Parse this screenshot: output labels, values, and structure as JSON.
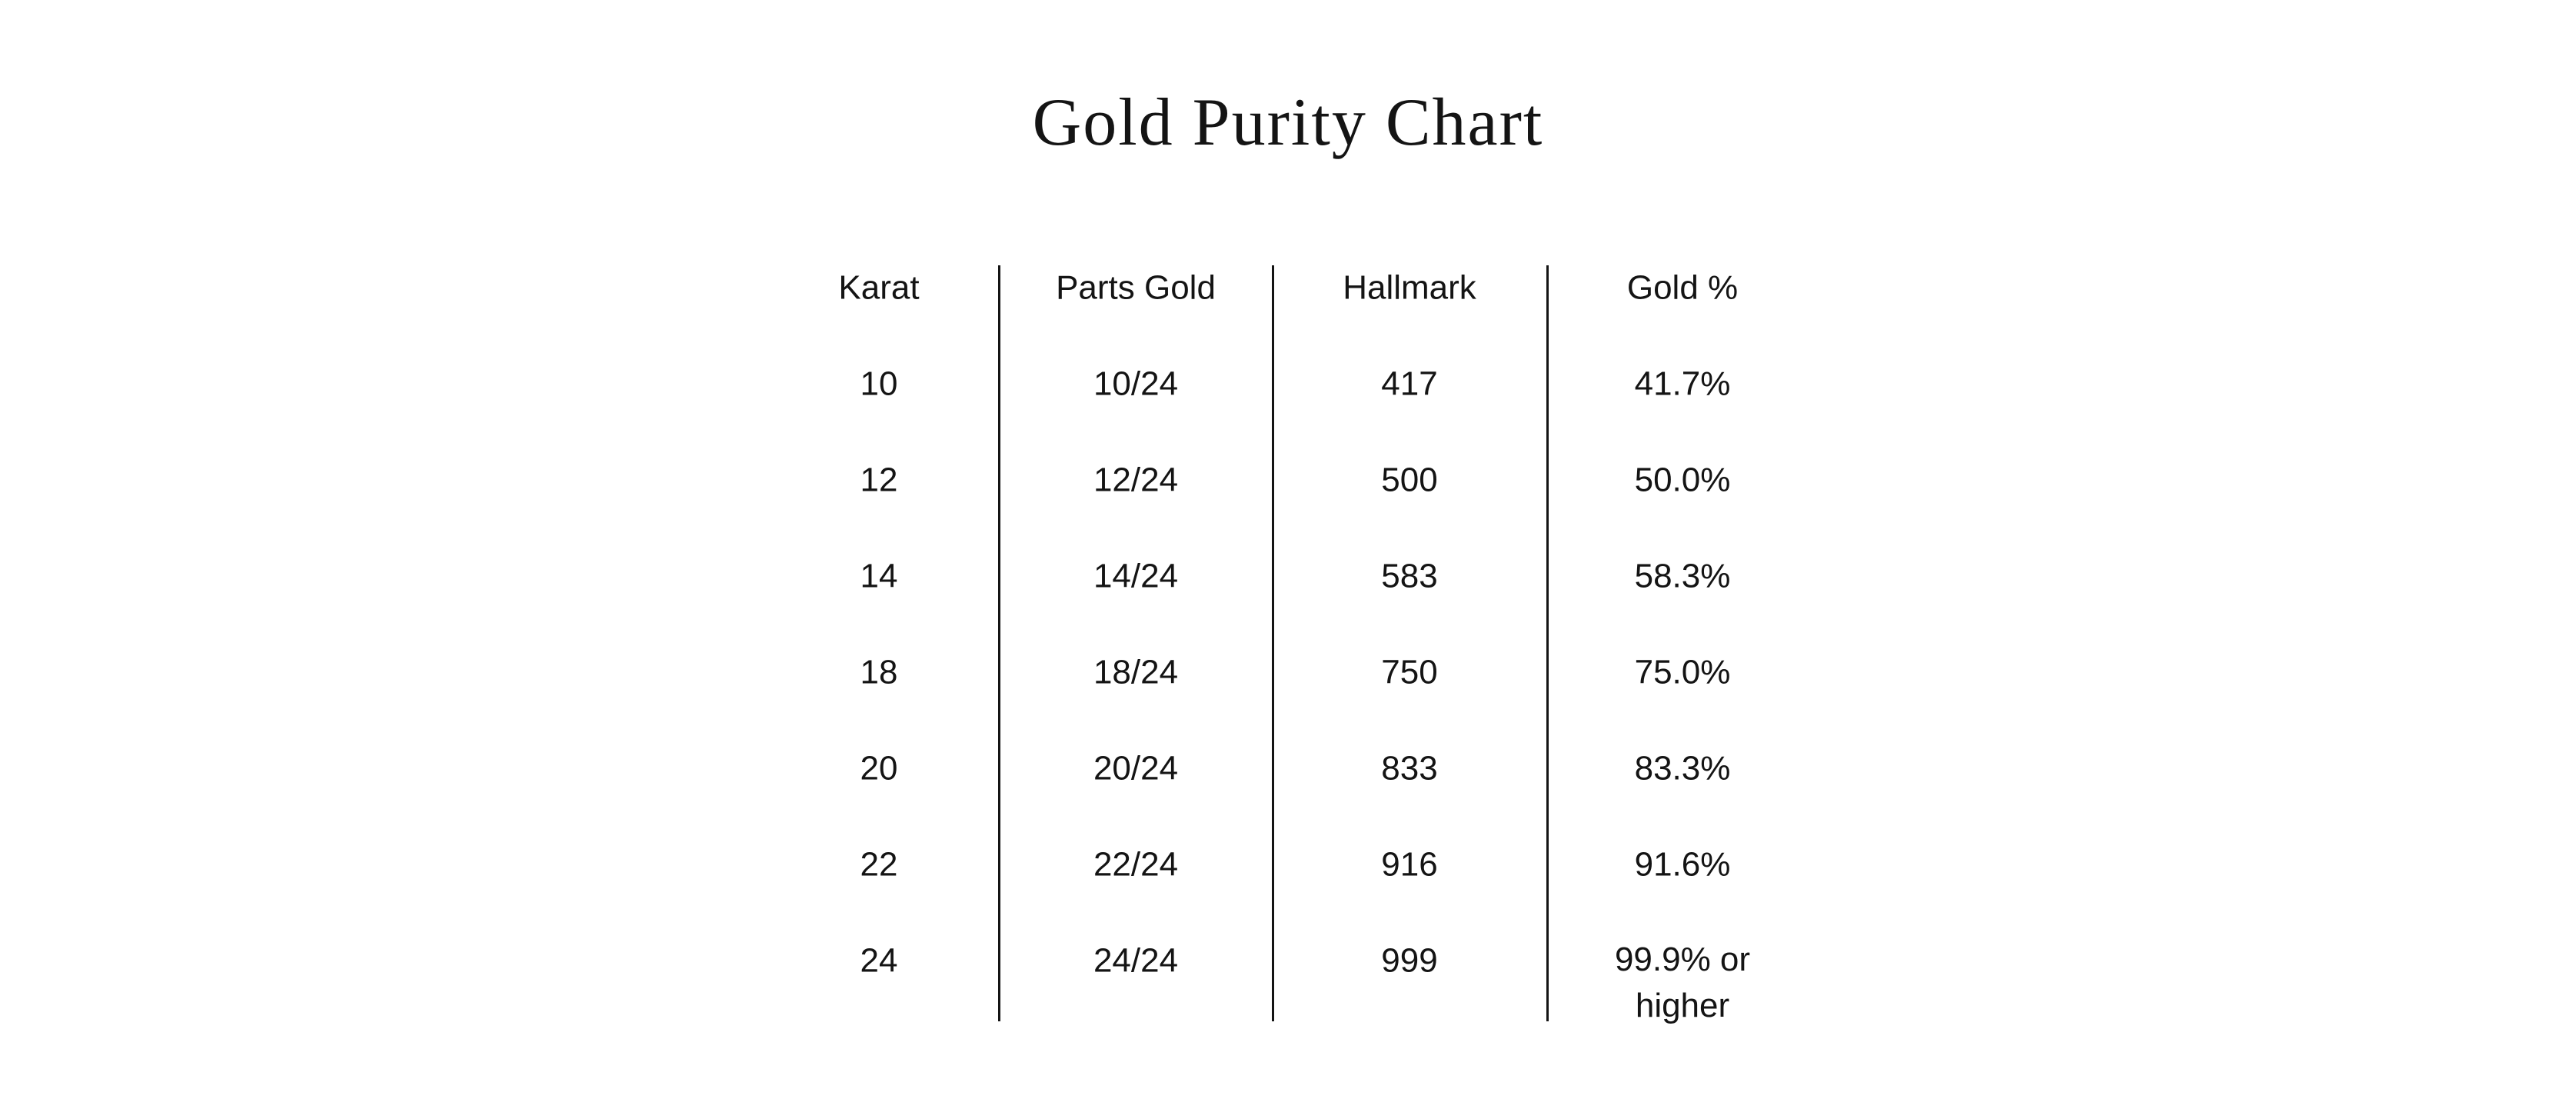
{
  "page": {
    "title": "Gold Purity Chart"
  },
  "colors": {
    "background": "#ffffff",
    "text": "#141414",
    "divider": "#141414"
  },
  "chart_data": {
    "type": "table",
    "title": "Gold Purity Chart",
    "columns": [
      "Karat",
      "Parts Gold",
      "Hallmark",
      "Gold %"
    ],
    "rows": [
      [
        "10",
        "10/24",
        "417",
        "41.7%"
      ],
      [
        "12",
        "12/24",
        "500",
        "50.0%"
      ],
      [
        "14",
        "14/24",
        "583",
        "58.3%"
      ],
      [
        "18",
        "18/24",
        "750",
        "75.0%"
      ],
      [
        "20",
        "20/24",
        "833",
        "83.3%"
      ],
      [
        "22",
        "22/24",
        "916",
        "91.6%"
      ],
      [
        "24",
        "24/24",
        "999",
        "99.9% or higher"
      ]
    ],
    "layout": {
      "column_dividers": true,
      "row_lines": false,
      "header_row": true,
      "alignment": "center"
    }
  }
}
